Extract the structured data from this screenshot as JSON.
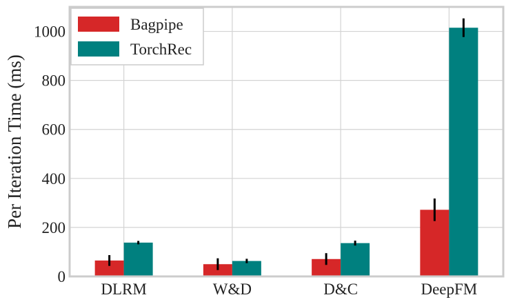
{
  "chart_data": {
    "type": "bar",
    "title": "",
    "xlabel": "",
    "ylabel": "Per Iteration Time (ms)",
    "categories": [
      "DLRM",
      "W&D",
      "D&C",
      "DeepFM"
    ],
    "ylim": [
      0,
      1100
    ],
    "yticks": [
      0,
      200,
      400,
      600,
      800,
      1000
    ],
    "grid": true,
    "legend_position": "top-left",
    "series": [
      {
        "name": "Bagpipe",
        "color": "#d62728",
        "values": [
          65,
          50,
          71,
          272
        ],
        "errors": [
          22,
          24,
          24,
          46
        ]
      },
      {
        "name": "TorchRec",
        "color": "#00807f",
        "values": [
          138,
          63,
          136,
          1015
        ],
        "errors": [
          7,
          9,
          10,
          38
        ]
      }
    ]
  }
}
